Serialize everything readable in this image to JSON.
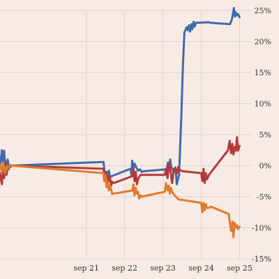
{
  "chart_data": {
    "type": "line",
    "title": "",
    "xlabel": "",
    "ylabel": "",
    "colors": {
      "background": "#f8ebe6",
      "grid": "#e3d2cc"
    },
    "grid": true,
    "legend": "none",
    "xlim": [
      -0.25,
      6.3
    ],
    "ylim": [
      -15,
      25
    ],
    "x_ticks": [
      {
        "x": 2.0,
        "label": "sep 21"
      },
      {
        "x": 3.0,
        "label": "sep 22"
      },
      {
        "x": 4.0,
        "label": "sep 23"
      },
      {
        "x": 5.0,
        "label": "sep 24"
      },
      {
        "x": 6.0,
        "label": "sep 25"
      }
    ],
    "y_ticks": [
      {
        "y": -15,
        "label": "-15%"
      },
      {
        "y": -10,
        "label": "-10%"
      },
      {
        "y": -5,
        "label": "-5%"
      },
      {
        "y": 0,
        "label": "0%"
      },
      {
        "y": 5,
        "label": "5%"
      },
      {
        "y": 10,
        "label": "10%"
      },
      {
        "y": 15,
        "label": "15%"
      },
      {
        "y": 20,
        "label": "20%"
      },
      {
        "y": 25,
        "label": "25%"
      }
    ],
    "series": [
      {
        "color": "#3f6aad",
        "x": [
          -0.25,
          -0.2,
          -0.17,
          -0.14,
          -0.11,
          -0.08,
          -0.05,
          -0.02,
          0.0,
          0.02,
          0.05,
          2.45,
          2.46,
          2.48,
          2.5,
          2.53,
          2.56,
          2.59,
          2.62,
          3.15,
          3.18,
          3.2,
          3.23,
          3.26,
          3.3,
          3.35,
          3.4,
          3.45,
          3.5,
          4.1,
          4.13,
          4.16,
          4.19,
          4.22,
          4.25,
          4.28,
          4.3,
          4.33,
          4.36,
          4.42,
          4.48,
          4.52,
          4.56,
          4.62,
          4.65,
          4.68,
          4.71,
          4.74,
          4.77,
          4.8,
          4.83,
          4.86,
          5.2,
          5.25,
          5.75,
          5.8,
          5.82,
          5.85,
          5.88,
          5.9,
          5.93,
          5.96,
          6.0
        ],
        "y": [
          -0.5,
          2.5,
          0.5,
          2.4,
          -0.8,
          0.4,
          1.0,
          -0.2,
          0.0,
          0.1,
          0.0,
          0.6,
          0.1,
          -1.2,
          -2.5,
          -1.0,
          -2.2,
          -0.8,
          -1.8,
          -0.5,
          -1.5,
          0.8,
          -0.6,
          0.3,
          -0.2,
          -0.8,
          -0.6,
          -1.0,
          -0.9,
          -0.6,
          0.5,
          -0.4,
          1.0,
          -0.3,
          -0.5,
          -1.2,
          -0.8,
          -0.4,
          -3.0,
          -1.5,
          8.0,
          16.0,
          21.5,
          22.3,
          21.8,
          22.6,
          21.6,
          22.8,
          22.0,
          23.2,
          22.4,
          23.0,
          23.1,
          23.0,
          22.8,
          23.6,
          24.2,
          25.4,
          24.0,
          24.7,
          24.2,
          24.4,
          23.9
        ]
      },
      {
        "color": "#b5393a",
        "x": [
          -0.25,
          -0.2,
          -0.17,
          -0.14,
          -0.11,
          -0.08,
          -0.05,
          -0.02,
          0.0,
          0.02,
          0.05,
          2.45,
          2.47,
          2.5,
          2.53,
          2.56,
          2.59,
          2.62,
          2.65,
          2.68,
          2.72,
          3.2,
          3.23,
          3.26,
          3.29,
          3.32,
          3.35,
          3.38,
          3.42,
          4.05,
          4.08,
          4.12,
          4.16,
          4.2,
          4.24,
          4.28,
          4.32,
          4.36,
          4.4,
          4.44,
          4.48,
          4.52,
          5.0,
          5.03,
          5.06,
          5.09,
          5.12,
          5.15,
          5.2,
          5.7,
          5.74,
          5.78,
          5.81,
          5.84,
          5.87,
          5.9,
          5.93,
          5.96,
          6.0
        ],
        "y": [
          -1.2,
          -3.0,
          -0.5,
          -2.0,
          0.5,
          -1.5,
          -0.2,
          -0.6,
          0.0,
          -0.2,
          0.0,
          -0.5,
          -2.0,
          -1.0,
          -3.0,
          -1.5,
          -2.6,
          -1.8,
          -3.2,
          -2.6,
          -2.8,
          -1.7,
          -0.5,
          -2.5,
          -1.0,
          -3.0,
          -2.2,
          -1.8,
          -1.5,
          -1.5,
          -0.5,
          -2.0,
          0.3,
          -1.0,
          -2.8,
          -0.8,
          -0.3,
          -1.3,
          -0.2,
          -0.7,
          -0.8,
          -0.9,
          -1.2,
          -2.5,
          -0.5,
          -2.8,
          -1.2,
          -2.2,
          -1.5,
          2.5,
          4.0,
          2.0,
          3.5,
          1.8,
          3.0,
          2.4,
          4.6,
          2.4,
          3.2
        ]
      },
      {
        "color": "#e07b2f",
        "x": [
          -0.25,
          -0.2,
          -0.16,
          -0.12,
          -0.08,
          -0.04,
          0.0,
          0.02,
          0.05,
          2.45,
          2.47,
          2.5,
          2.53,
          2.56,
          2.59,
          2.62,
          2.65,
          2.68,
          2.72,
          3.2,
          3.23,
          3.26,
          3.29,
          3.32,
          3.35,
          3.38,
          3.42,
          3.45,
          4.05,
          4.08,
          4.12,
          4.15,
          4.18,
          4.21,
          4.24,
          4.28,
          4.32,
          4.36,
          4.4,
          4.44,
          4.48,
          5.0,
          5.03,
          5.06,
          5.09,
          5.12,
          5.15,
          5.2,
          5.25,
          5.72,
          5.75,
          5.78,
          5.81,
          5.84,
          5.87,
          5.9,
          5.93,
          5.96,
          6.0
        ],
        "y": [
          0.2,
          -1.0,
          0.5,
          -1.2,
          -0.2,
          -0.5,
          0.0,
          0.0,
          0.0,
          -1.2,
          -2.5,
          -1.5,
          -3.5,
          -2.5,
          -4.0,
          -3.2,
          -3.8,
          -4.6,
          -4.5,
          -4.0,
          -3.0,
          -4.8,
          -3.6,
          -4.5,
          -4.2,
          -5.3,
          -4.8,
          -5.0,
          -4.2,
          -2.8,
          -4.0,
          -3.2,
          -4.5,
          -3.6,
          -4.2,
          -4.6,
          -4.9,
          -5.1,
          -5.4,
          -5.5,
          -5.5,
          -6.0,
          -7.5,
          -6.0,
          -7.2,
          -6.2,
          -6.8,
          -6.8,
          -6.6,
          -7.8,
          -9.5,
          -10.5,
          -9.0,
          -11.5,
          -9.2,
          -10.0,
          -9.6,
          -10.2,
          -9.8
        ]
      }
    ]
  }
}
